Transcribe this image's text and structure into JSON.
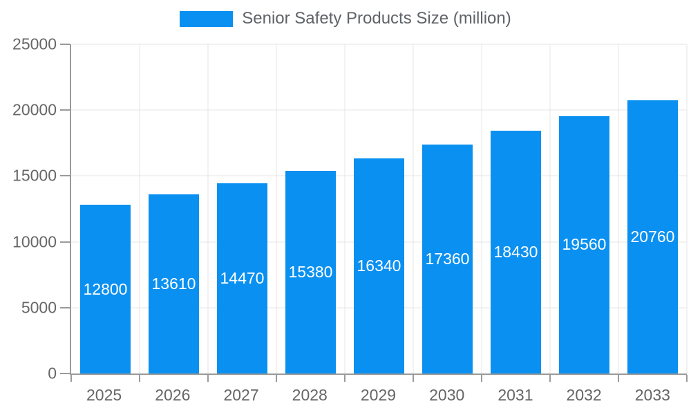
{
  "chart_data": {
    "type": "bar",
    "title": "Senior Safety Products Size (million)",
    "legend_position": "top",
    "categories": [
      "2025",
      "2026",
      "2027",
      "2028",
      "2029",
      "2030",
      "2031",
      "2032",
      "2033"
    ],
    "values": [
      12800,
      13610,
      14470,
      15380,
      16340,
      17360,
      18430,
      19560,
      20760
    ],
    "value_labels": [
      "12800",
      "13610",
      "14470",
      "15380",
      "16340",
      "17360",
      "18430",
      "19560",
      "20760"
    ],
    "value_labels_position": "inside-center",
    "ylim": [
      0,
      25000
    ],
    "ytick_step": 5000,
    "y_tick_labels": [
      "0",
      "5000",
      "10000",
      "15000",
      "20000",
      "25000"
    ],
    "grid": true,
    "bar_color": "#0A90F0",
    "bar_label_color": "#ffffff",
    "axis_color": "#9a9a9a",
    "grid_color": "#e4e4e4",
    "tick_label_color": "#666666",
    "legend_text_color": "#5f6368"
  }
}
